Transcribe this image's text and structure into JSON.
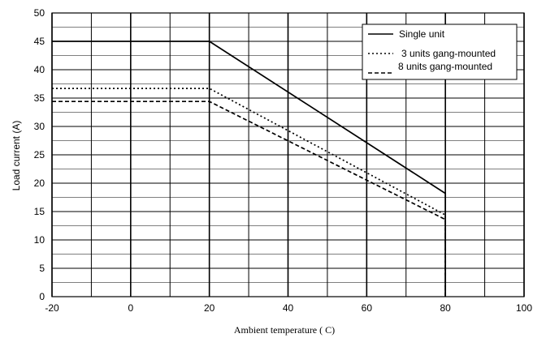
{
  "chart_data": {
    "type": "line",
    "title": "",
    "xlabel": "Ambient  temperature (    C)",
    "ylabel": "Load current (A)",
    "xlim": [
      -20,
      100
    ],
    "ylim": [
      0,
      50
    ],
    "x_ticks": [
      -20,
      0,
      20,
      40,
      60,
      80,
      100
    ],
    "y_ticks": [
      0,
      5,
      10,
      15,
      20,
      25,
      30,
      35,
      40,
      45,
      50
    ],
    "grid": true,
    "legend_position": "top-right",
    "series": [
      {
        "name": "Single unit",
        "style": "solid",
        "color": "#000000",
        "x": [
          -20,
          20,
          80,
          80
        ],
        "y": [
          45,
          45,
          18.2,
          0
        ]
      },
      {
        "name": "3 units gang-mounted",
        "style": "dotted",
        "color": "#000000",
        "x": [
          -20,
          20,
          80,
          80
        ],
        "y": [
          36.7,
          36.7,
          14.4,
          0
        ]
      },
      {
        "name": "8 units gang-mounted",
        "style": "dashed",
        "color": "#000000",
        "x": [
          -20,
          20,
          80,
          80
        ],
        "y": [
          34.4,
          34.4,
          13.6,
          0
        ]
      }
    ]
  }
}
